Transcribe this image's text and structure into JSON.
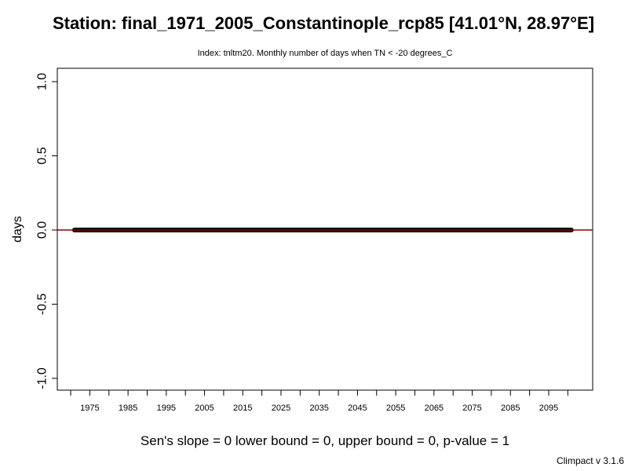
{
  "chart_data": {
    "type": "line",
    "title": "Station: final_1971_2005_Constantinople_rcp85 [41.01°N, 28.97°E]",
    "subtitle": "Index: tnltm20. Monthly number of days when TN < -20 degrees_C",
    "xlabel": "",
    "ylabel": "days",
    "xlim": [
      1966.5,
      2106.5
    ],
    "ylim": [
      -1.0,
      1.0
    ],
    "x_ticks": [
      1970,
      1975,
      1980,
      1985,
      1990,
      1995,
      2000,
      2005,
      2010,
      2015,
      2020,
      2025,
      2030,
      2035,
      2040,
      2045,
      2050,
      2055,
      2060,
      2065,
      2070,
      2075,
      2080,
      2085,
      2090,
      2095,
      2100
    ],
    "x_tick_labels": [
      "1975",
      "1985",
      "1995",
      "2005",
      "2015",
      "2025",
      "2035",
      "2045",
      "2055",
      "2065",
      "2075",
      "2085",
      "2095"
    ],
    "y_ticks": [
      -1.0,
      -0.5,
      0.0,
      0.5,
      1.0
    ],
    "y_tick_labels": [
      "-1.0",
      "-0.5",
      "0.0",
      "0.5",
      "1.0"
    ],
    "grid": false,
    "series": [
      {
        "x_start": 1971,
        "x_end": 2100,
        "points_per_year": 12,
        "value": 0,
        "color": "#000000"
      }
    ],
    "trend_line": {
      "value": 0,
      "color": "#8b0000"
    },
    "stats_text": "Sen's slope = 0   lower bound = 0,   upper bound = 0,   p-value = 1"
  },
  "footer": {
    "version": "Climpact v 3.1.6"
  }
}
